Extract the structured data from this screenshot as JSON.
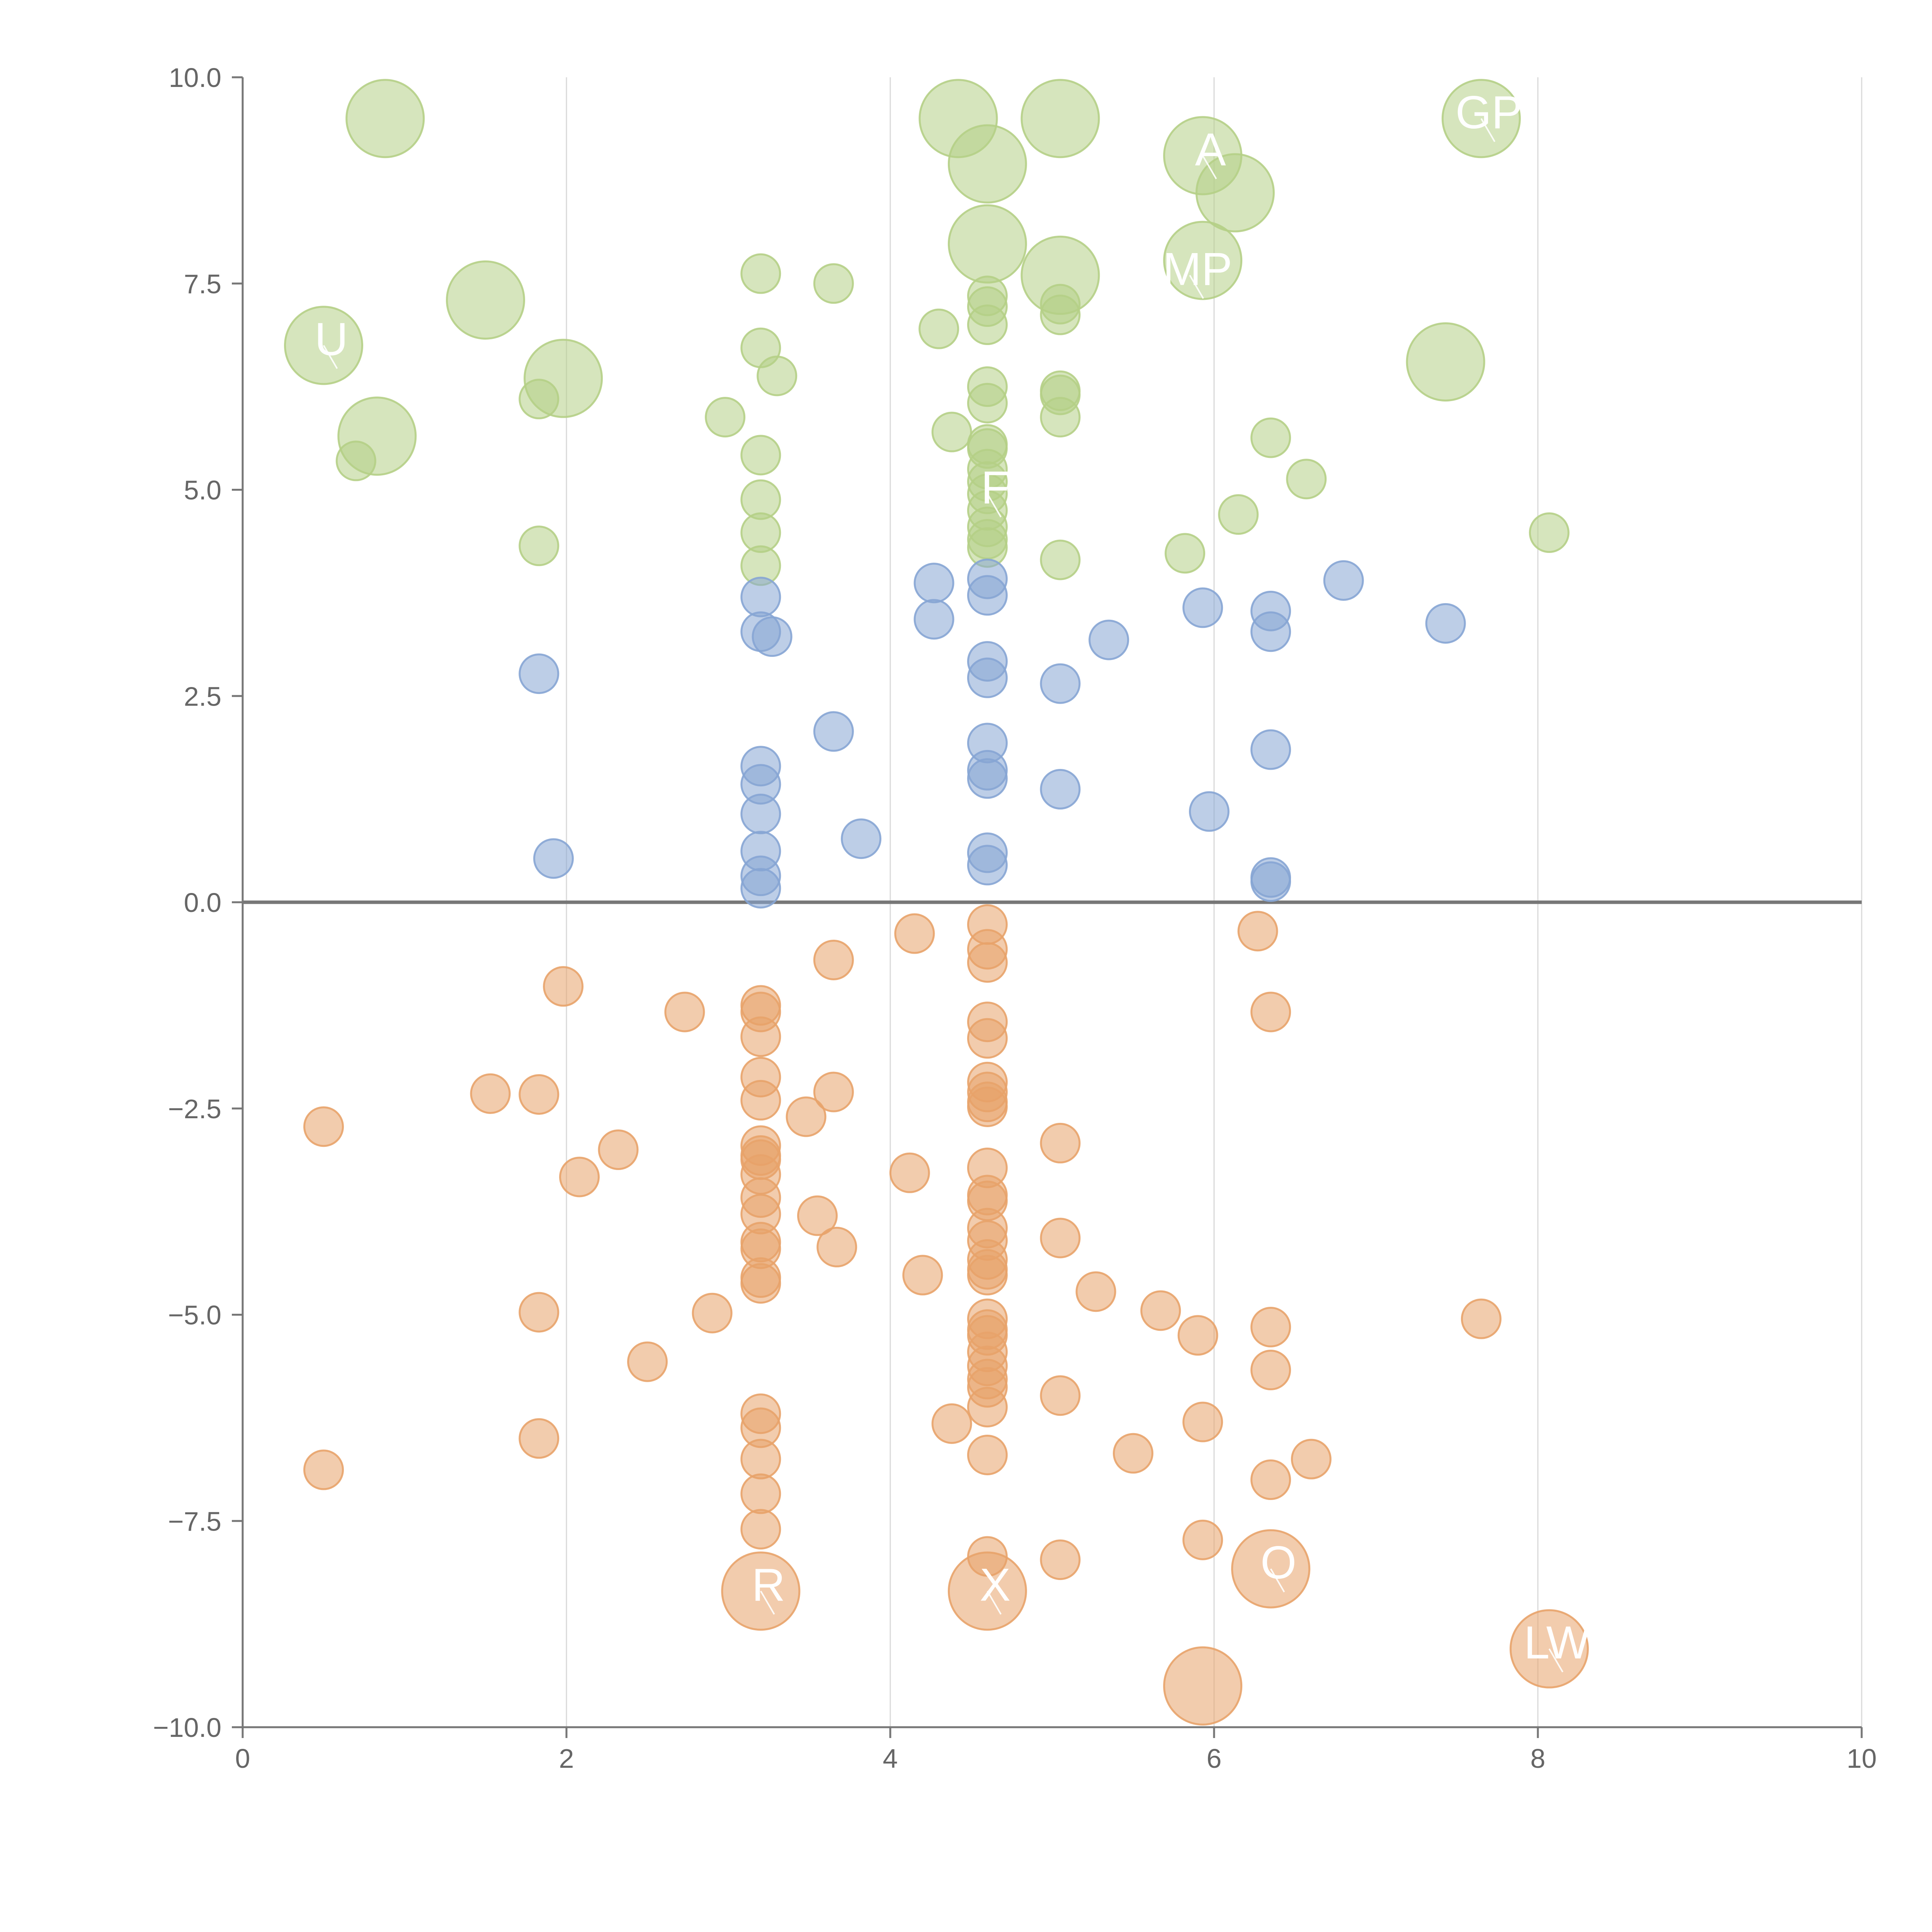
{
  "chart_data": {
    "type": "scatter",
    "title": "",
    "xlabel": "",
    "ylabel": "",
    "xlim": [
      0,
      10
    ],
    "ylim": [
      -10,
      10
    ],
    "x_ticks": [
      "0",
      "2",
      "4",
      "6",
      "8",
      "10"
    ],
    "y_ticks": [
      "−10.0",
      "−7.5",
      "−5.0",
      "−2.5",
      "0.0",
      "2.5",
      "5.0",
      "7.5",
      "10.0"
    ],
    "x_tick_values": [
      0,
      2,
      4,
      6,
      8,
      10
    ],
    "y_tick_values": [
      -10,
      -7.5,
      -5,
      -2.5,
      0,
      2.5,
      5,
      7.5,
      10
    ],
    "grid": "vertical only",
    "colors": {
      "green": "#b5cf86",
      "blue": "#86a5d4",
      "orange": "#e8a36a",
      "label": "#ffffff"
    },
    "series": [
      {
        "name": "green",
        "color": "#b5cf86",
        "points": [
          {
            "x": 0.88,
            "y": 9.5,
            "big": true
          },
          {
            "x": 4.42,
            "y": 9.5,
            "big": true
          },
          {
            "x": 5.05,
            "y": 9.5,
            "big": true
          },
          {
            "x": 7.65,
            "y": 9.5,
            "big": true
          },
          {
            "x": 4.6,
            "y": 8.95,
            "big": true
          },
          {
            "x": 5.93,
            "y": 9.05,
            "big": true
          },
          {
            "x": 6.13,
            "y": 8.6,
            "big": true
          },
          {
            "x": 4.6,
            "y": 7.98,
            "big": true
          },
          {
            "x": 5.93,
            "y": 7.78,
            "big": true
          },
          {
            "x": 5.05,
            "y": 7.6,
            "big": true
          },
          {
            "x": 1.5,
            "y": 7.3,
            "big": true
          },
          {
            "x": 0.5,
            "y": 6.75,
            "big": true
          },
          {
            "x": 7.43,
            "y": 6.55,
            "big": true
          },
          {
            "x": 1.98,
            "y": 6.35,
            "big": true
          },
          {
            "x": 0.83,
            "y": 5.65,
            "big": true
          },
          {
            "x": 3.2,
            "y": 7.62
          },
          {
            "x": 3.65,
            "y": 7.5
          },
          {
            "x": 4.6,
            "y": 7.35
          },
          {
            "x": 4.6,
            "y": 7.22
          },
          {
            "x": 4.6,
            "y": 7.0
          },
          {
            "x": 4.3,
            "y": 6.95
          },
          {
            "x": 5.05,
            "y": 7.25
          },
          {
            "x": 5.05,
            "y": 7.12
          },
          {
            "x": 3.2,
            "y": 6.72
          },
          {
            "x": 3.3,
            "y": 6.38
          },
          {
            "x": 1.83,
            "y": 6.1
          },
          {
            "x": 4.6,
            "y": 6.25
          },
          {
            "x": 4.6,
            "y": 6.05
          },
          {
            "x": 5.05,
            "y": 6.2
          },
          {
            "x": 5.05,
            "y": 6.15
          },
          {
            "x": 2.98,
            "y": 5.88
          },
          {
            "x": 5.05,
            "y": 5.88
          },
          {
            "x": 4.38,
            "y": 5.7
          },
          {
            "x": 6.35,
            "y": 5.63
          },
          {
            "x": 4.6,
            "y": 5.55
          },
          {
            "x": 4.6,
            "y": 5.5
          },
          {
            "x": 3.2,
            "y": 5.42
          },
          {
            "x": 0.7,
            "y": 5.35
          },
          {
            "x": 4.6,
            "y": 5.25
          },
          {
            "x": 4.6,
            "y": 5.1
          },
          {
            "x": 6.57,
            "y": 5.13
          },
          {
            "x": 4.6,
            "y": 4.95
          },
          {
            "x": 3.2,
            "y": 4.88
          },
          {
            "x": 4.6,
            "y": 4.75
          },
          {
            "x": 6.15,
            "y": 4.7
          },
          {
            "x": 4.6,
            "y": 4.55
          },
          {
            "x": 3.2,
            "y": 4.48
          },
          {
            "x": 8.07,
            "y": 4.48
          },
          {
            "x": 4.6,
            "y": 4.4
          },
          {
            "x": 4.6,
            "y": 4.3
          },
          {
            "x": 1.83,
            "y": 4.32
          },
          {
            "x": 5.82,
            "y": 4.23
          },
          {
            "x": 5.05,
            "y": 4.15
          },
          {
            "x": 3.2,
            "y": 4.08
          }
        ]
      },
      {
        "name": "blue",
        "color": "#86a5d4",
        "points": [
          {
            "x": 4.6,
            "y": 3.92
          },
          {
            "x": 6.8,
            "y": 3.9
          },
          {
            "x": 4.27,
            "y": 3.87
          },
          {
            "x": 4.6,
            "y": 3.72
          },
          {
            "x": 3.2,
            "y": 3.7
          },
          {
            "x": 5.93,
            "y": 3.57
          },
          {
            "x": 6.35,
            "y": 3.53
          },
          {
            "x": 4.27,
            "y": 3.43
          },
          {
            "x": 7.43,
            "y": 3.38
          },
          {
            "x": 3.2,
            "y": 3.28
          },
          {
            "x": 6.35,
            "y": 3.28
          },
          {
            "x": 3.27,
            "y": 3.22
          },
          {
            "x": 5.35,
            "y": 3.18
          },
          {
            "x": 4.6,
            "y": 2.92
          },
          {
            "x": 1.83,
            "y": 2.77
          },
          {
            "x": 4.6,
            "y": 2.72
          },
          {
            "x": 5.05,
            "y": 2.65
          },
          {
            "x": 3.65,
            "y": 2.07
          },
          {
            "x": 4.6,
            "y": 1.93
          },
          {
            "x": 6.35,
            "y": 1.85
          },
          {
            "x": 3.2,
            "y": 1.65
          },
          {
            "x": 4.6,
            "y": 1.6
          },
          {
            "x": 4.6,
            "y": 1.5
          },
          {
            "x": 3.2,
            "y": 1.43
          },
          {
            "x": 5.05,
            "y": 1.37
          },
          {
            "x": 5.97,
            "y": 1.1
          },
          {
            "x": 3.2,
            "y": 1.07
          },
          {
            "x": 3.82,
            "y": 0.77
          },
          {
            "x": 3.2,
            "y": 0.62
          },
          {
            "x": 4.6,
            "y": 0.6
          },
          {
            "x": 1.92,
            "y": 0.53
          },
          {
            "x": 4.6,
            "y": 0.45
          },
          {
            "x": 3.2,
            "y": 0.32
          },
          {
            "x": 6.35,
            "y": 0.3
          },
          {
            "x": 6.35,
            "y": 0.25
          },
          {
            "x": 3.2,
            "y": 0.17
          }
        ]
      },
      {
        "name": "orange",
        "color": "#e8a36a",
        "points": [
          {
            "x": 4.6,
            "y": -0.27
          },
          {
            "x": 6.27,
            "y": -0.35
          },
          {
            "x": 4.15,
            "y": -0.38
          },
          {
            "x": 4.6,
            "y": -0.57
          },
          {
            "x": 3.65,
            "y": -0.7
          },
          {
            "x": 4.6,
            "y": -0.73
          },
          {
            "x": 1.98,
            "y": -1.02
          },
          {
            "x": 3.2,
            "y": -1.25
          },
          {
            "x": 2.73,
            "y": -1.33
          },
          {
            "x": 3.2,
            "y": -1.33
          },
          {
            "x": 6.35,
            "y": -1.33
          },
          {
            "x": 4.6,
            "y": -1.45
          },
          {
            "x": 3.2,
            "y": -1.63
          },
          {
            "x": 4.6,
            "y": -1.65
          },
          {
            "x": 3.2,
            "y": -2.12
          },
          {
            "x": 4.6,
            "y": -2.18
          },
          {
            "x": 4.6,
            "y": -2.3
          },
          {
            "x": 3.65,
            "y": -2.3
          },
          {
            "x": 1.53,
            "y": -2.32
          },
          {
            "x": 1.83,
            "y": -2.33
          },
          {
            "x": 4.6,
            "y": -2.42
          },
          {
            "x": 4.6,
            "y": -2.48
          },
          {
            "x": 3.2,
            "y": -2.4
          },
          {
            "x": 3.48,
            "y": -2.6
          },
          {
            "x": 0.5,
            "y": -2.72
          },
          {
            "x": 5.05,
            "y": -2.92
          },
          {
            "x": 3.2,
            "y": -2.95
          },
          {
            "x": 2.32,
            "y": -3.0
          },
          {
            "x": 3.2,
            "y": -3.07
          },
          {
            "x": 3.2,
            "y": -3.12
          },
          {
            "x": 4.6,
            "y": -3.22
          },
          {
            "x": 4.12,
            "y": -3.28
          },
          {
            "x": 3.2,
            "y": -3.3
          },
          {
            "x": 2.08,
            "y": -3.33
          },
          {
            "x": 4.6,
            "y": -3.55
          },
          {
            "x": 3.2,
            "y": -3.58
          },
          {
            "x": 4.6,
            "y": -3.62
          },
          {
            "x": 3.2,
            "y": -3.78
          },
          {
            "x": 3.55,
            "y": -3.8
          },
          {
            "x": 4.6,
            "y": -3.95
          },
          {
            "x": 5.05,
            "y": -4.07
          },
          {
            "x": 4.6,
            "y": -4.1
          },
          {
            "x": 3.2,
            "y": -4.12
          },
          {
            "x": 3.67,
            "y": -4.18
          },
          {
            "x": 3.2,
            "y": -4.2
          },
          {
            "x": 4.6,
            "y": -4.33
          },
          {
            "x": 4.6,
            "y": -4.45
          },
          {
            "x": 4.6,
            "y": -4.52
          },
          {
            "x": 4.2,
            "y": -4.52
          },
          {
            "x": 3.2,
            "y": -4.55
          },
          {
            "x": 3.2,
            "y": -4.62
          },
          {
            "x": 5.27,
            "y": -4.72
          },
          {
            "x": 5.67,
            "y": -4.95
          },
          {
            "x": 1.83,
            "y": -4.97
          },
          {
            "x": 2.9,
            "y": -4.98
          },
          {
            "x": 4.6,
            "y": -5.05
          },
          {
            "x": 7.65,
            "y": -5.05
          },
          {
            "x": 6.35,
            "y": -5.15
          },
          {
            "x": 4.6,
            "y": -5.18
          },
          {
            "x": 4.6,
            "y": -5.25
          },
          {
            "x": 5.9,
            "y": -5.25
          },
          {
            "x": 4.6,
            "y": -5.45
          },
          {
            "x": 2.5,
            "y": -5.57
          },
          {
            "x": 4.6,
            "y": -5.62
          },
          {
            "x": 6.35,
            "y": -5.67
          },
          {
            "x": 4.6,
            "y": -5.78
          },
          {
            "x": 4.6,
            "y": -5.88
          },
          {
            "x": 5.05,
            "y": -5.98
          },
          {
            "x": 4.6,
            "y": -6.12
          },
          {
            "x": 3.2,
            "y": -6.2
          },
          {
            "x": 5.93,
            "y": -6.3
          },
          {
            "x": 4.38,
            "y": -6.32
          },
          {
            "x": 3.2,
            "y": -6.37
          },
          {
            "x": 1.83,
            "y": -6.5
          },
          {
            "x": 5.5,
            "y": -6.68
          },
          {
            "x": 4.6,
            "y": -6.7
          },
          {
            "x": 3.2,
            "y": -6.75
          },
          {
            "x": 6.6,
            "y": -6.75
          },
          {
            "x": 0.5,
            "y": -6.88
          },
          {
            "x": 6.35,
            "y": -7.0
          },
          {
            "x": 3.2,
            "y": -7.17
          },
          {
            "x": 3.2,
            "y": -7.6
          },
          {
            "x": 5.93,
            "y": -7.73
          },
          {
            "x": 4.6,
            "y": -7.93
          },
          {
            "x": 5.05,
            "y": -7.97
          },
          {
            "x": 6.35,
            "y": -8.08,
            "big": true
          },
          {
            "x": 3.2,
            "y": -8.35,
            "big": true
          },
          {
            "x": 4.6,
            "y": -8.35,
            "big": true
          },
          {
            "x": 8.07,
            "y": -9.05,
            "big": true
          },
          {
            "x": 5.93,
            "y": -9.5,
            "big": true
          }
        ]
      }
    ],
    "annotations": [
      {
        "text": "GP",
        "x": 7.65,
        "y": 9.5
      },
      {
        "text": "A",
        "x": 5.93,
        "y": 9.05
      },
      {
        "text": "MP",
        "x": 5.85,
        "y": 7.6
      },
      {
        "text": "U",
        "x": 0.5,
        "y": 6.75
      },
      {
        "text": "F",
        "x": 4.6,
        "y": 4.95
      },
      {
        "text": "R",
        "x": 3.2,
        "y": -8.35
      },
      {
        "text": "X",
        "x": 4.6,
        "y": -8.35
      },
      {
        "text": "O",
        "x": 6.35,
        "y": -8.08
      },
      {
        "text": "LW",
        "x": 8.07,
        "y": -9.05
      }
    ]
  }
}
